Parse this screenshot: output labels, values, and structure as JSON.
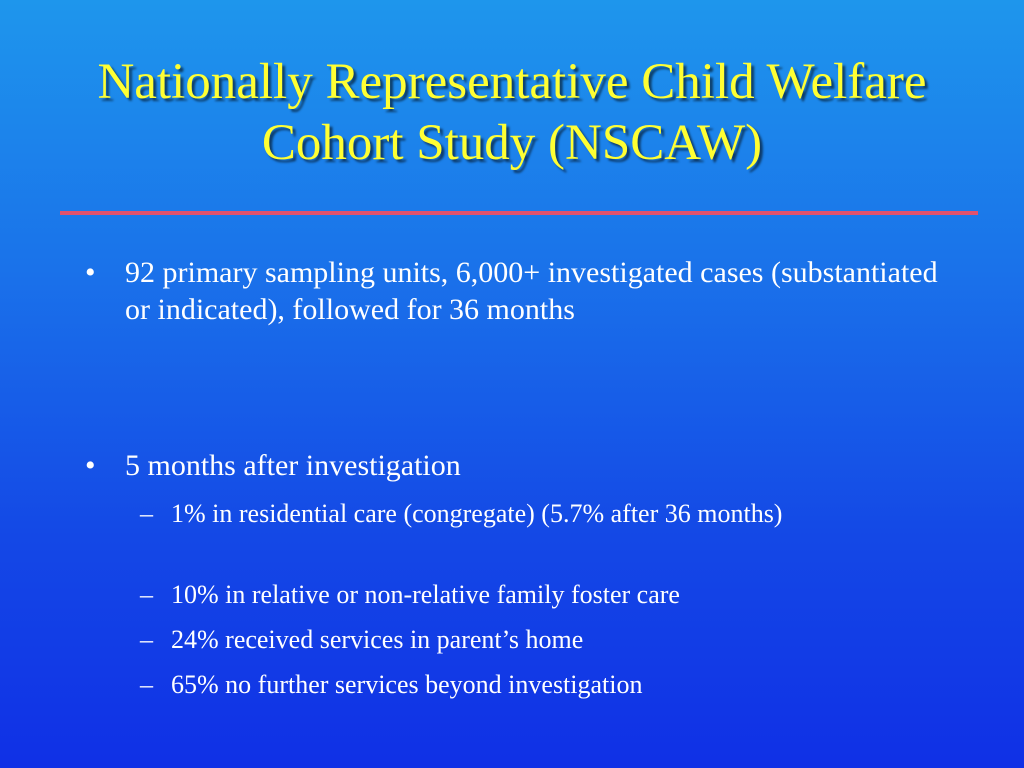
{
  "slide": {
    "title": "Nationally Representative Child Welfare Cohort Study (NSCAW)",
    "bullets": [
      {
        "marker": "•",
        "text": "92 primary sampling units, 6,000+ investigated cases (substantiated or indicated), followed for 36 months"
      },
      {
        "marker": "•",
        "text": "5 months after investigation"
      }
    ],
    "subbullets": [
      {
        "marker": "–",
        "text": "1% in residential care (congregate) (5.7% after 36 months)"
      },
      {
        "marker": "–",
        "text": "10% in relative or non-relative family foster care"
      },
      {
        "marker": "–",
        "text": "24% received services in parent’s home"
      },
      {
        "marker": "–",
        "text": "65% no further services beyond investigation"
      }
    ]
  },
  "colors": {
    "title": "#ffff33",
    "body_text": "#ffffff",
    "divider": "#e0526e",
    "background_top": "#1e96ec",
    "background_bottom": "#1030e6"
  }
}
